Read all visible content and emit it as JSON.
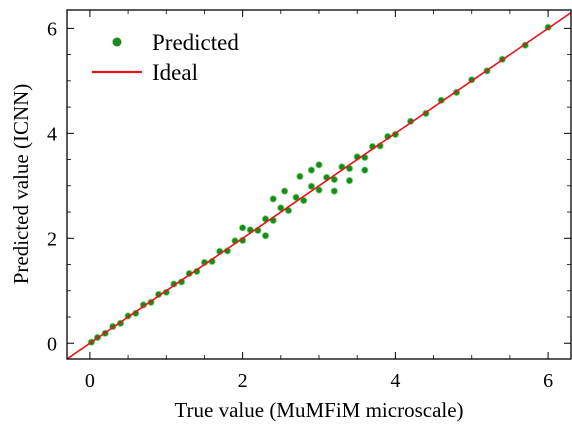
{
  "chart_data": {
    "type": "scatter",
    "xlabel": "True value (MuMFiM microscale)",
    "ylabel": "Predicted value (ICNN)",
    "xlim": [
      -0.3,
      6.3
    ],
    "ylim": [
      -0.3,
      6.35
    ],
    "xticks": [
      0,
      2,
      4,
      6
    ],
    "yticks": [
      0,
      2,
      4,
      6
    ],
    "xtick_labels": [
      "0",
      "2",
      "4",
      "6"
    ],
    "ytick_labels": [
      "0",
      "2",
      "4",
      "6"
    ],
    "grid": false,
    "legend_position": "top-left",
    "series": [
      {
        "name": "Predicted",
        "kind": "scatter",
        "color": "#1a8a1a",
        "edge_color": "#7fd67f",
        "points_summary": "dense cloud along y = x for x from 0 to about 6.0",
        "points": [
          [
            0.02,
            0.02
          ],
          [
            0.1,
            0.11
          ],
          [
            0.2,
            0.19
          ],
          [
            0.3,
            0.32
          ],
          [
            0.4,
            0.38
          ],
          [
            0.5,
            0.52
          ],
          [
            0.6,
            0.57
          ],
          [
            0.7,
            0.73
          ],
          [
            0.8,
            0.78
          ],
          [
            0.9,
            0.93
          ],
          [
            1.0,
            0.97
          ],
          [
            1.1,
            1.13
          ],
          [
            1.2,
            1.17
          ],
          [
            1.3,
            1.33
          ],
          [
            1.4,
            1.37
          ],
          [
            1.5,
            1.54
          ],
          [
            1.6,
            1.56
          ],
          [
            1.7,
            1.75
          ],
          [
            1.8,
            1.76
          ],
          [
            1.9,
            1.95
          ],
          [
            2.0,
            1.96
          ],
          [
            2.1,
            2.16
          ],
          [
            2.2,
            2.15
          ],
          [
            2.3,
            2.37
          ],
          [
            2.4,
            2.34
          ],
          [
            2.5,
            2.58
          ],
          [
            2.6,
            2.53
          ],
          [
            2.7,
            2.78
          ],
          [
            2.8,
            2.72
          ],
          [
            2.9,
            2.99
          ],
          [
            3.0,
            2.92
          ],
          [
            3.1,
            3.16
          ],
          [
            3.2,
            3.12
          ],
          [
            3.3,
            3.36
          ],
          [
            3.4,
            3.33
          ],
          [
            3.5,
            3.55
          ],
          [
            3.6,
            3.54
          ],
          [
            3.7,
            3.75
          ],
          [
            3.8,
            3.76
          ],
          [
            3.9,
            3.94
          ],
          [
            4.0,
            3.98
          ],
          [
            4.2,
            4.23
          ],
          [
            4.4,
            4.38
          ],
          [
            4.6,
            4.63
          ],
          [
            4.8,
            4.78
          ],
          [
            5.0,
            5.02
          ],
          [
            5.2,
            5.19
          ],
          [
            5.4,
            5.41
          ],
          [
            5.7,
            5.68
          ],
          [
            6.0,
            6.02
          ],
          [
            2.75,
            3.18
          ],
          [
            2.9,
            3.3
          ],
          [
            3.0,
            3.4
          ],
          [
            2.4,
            2.75
          ],
          [
            2.55,
            2.9
          ],
          [
            3.2,
            2.9
          ],
          [
            3.4,
            3.1
          ],
          [
            3.6,
            3.3
          ],
          [
            2.0,
            2.2
          ],
          [
            2.3,
            2.05
          ]
        ]
      },
      {
        "name": "Ideal",
        "kind": "line",
        "color": "#e8141c",
        "x": [
          -0.3,
          6.3
        ],
        "y": [
          -0.3,
          6.3
        ]
      }
    ]
  }
}
